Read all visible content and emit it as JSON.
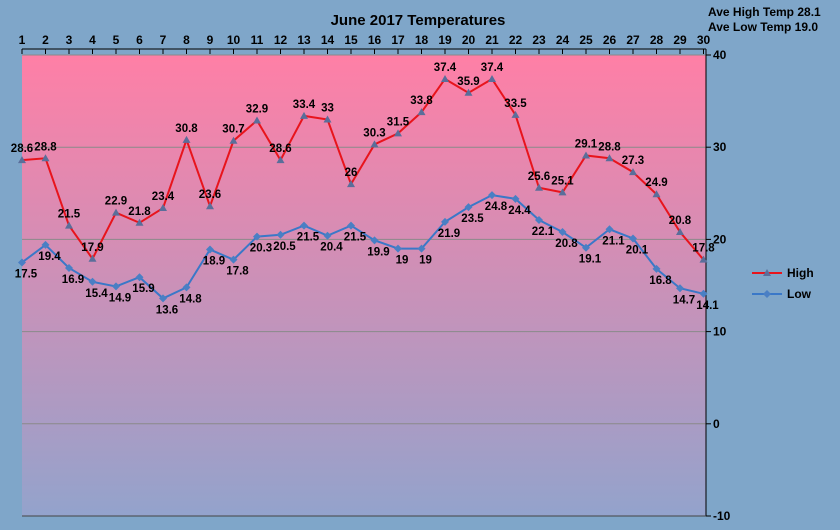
{
  "chart_data": {
    "type": "line",
    "title": "June 2017 Temperatures",
    "x": [
      1,
      2,
      3,
      4,
      5,
      6,
      7,
      8,
      9,
      10,
      11,
      12,
      13,
      14,
      15,
      16,
      17,
      18,
      19,
      20,
      21,
      22,
      23,
      24,
      25,
      26,
      27,
      28,
      29,
      30
    ],
    "ylim": [
      -10,
      40
    ],
    "yticks": [
      -10,
      0,
      10,
      20,
      30,
      40
    ],
    "grid": true,
    "legend": "right",
    "series": [
      {
        "name": "High",
        "color": "#e8141c",
        "values": [
          28.6,
          28.8,
          21.5,
          17.9,
          22.9,
          21.8,
          23.4,
          30.8,
          23.6,
          30.7,
          32.9,
          28.6,
          33.4,
          33,
          26,
          30.3,
          31.5,
          33.8,
          37.4,
          35.9,
          37.4,
          33.5,
          25.6,
          25.1,
          29.1,
          28.8,
          27.3,
          24.9,
          20.8,
          17.8
        ]
      },
      {
        "name": "Low",
        "color": "#3a78c8",
        "values": [
          17.5,
          19.4,
          16.9,
          15.4,
          14.9,
          15.9,
          13.6,
          14.8,
          18.9,
          17.8,
          20.3,
          20.5,
          21.5,
          20.4,
          21.5,
          19.9,
          19,
          19,
          21.9,
          23.5,
          24.8,
          24.4,
          22.1,
          20.8,
          19.1,
          21.1,
          20.1,
          16.8,
          14.7,
          14.1
        ]
      }
    ],
    "annotations": {
      "ave_high": "Ave High Temp 28.1",
      "ave_low": "Ave Low Temp 19.0"
    }
  }
}
